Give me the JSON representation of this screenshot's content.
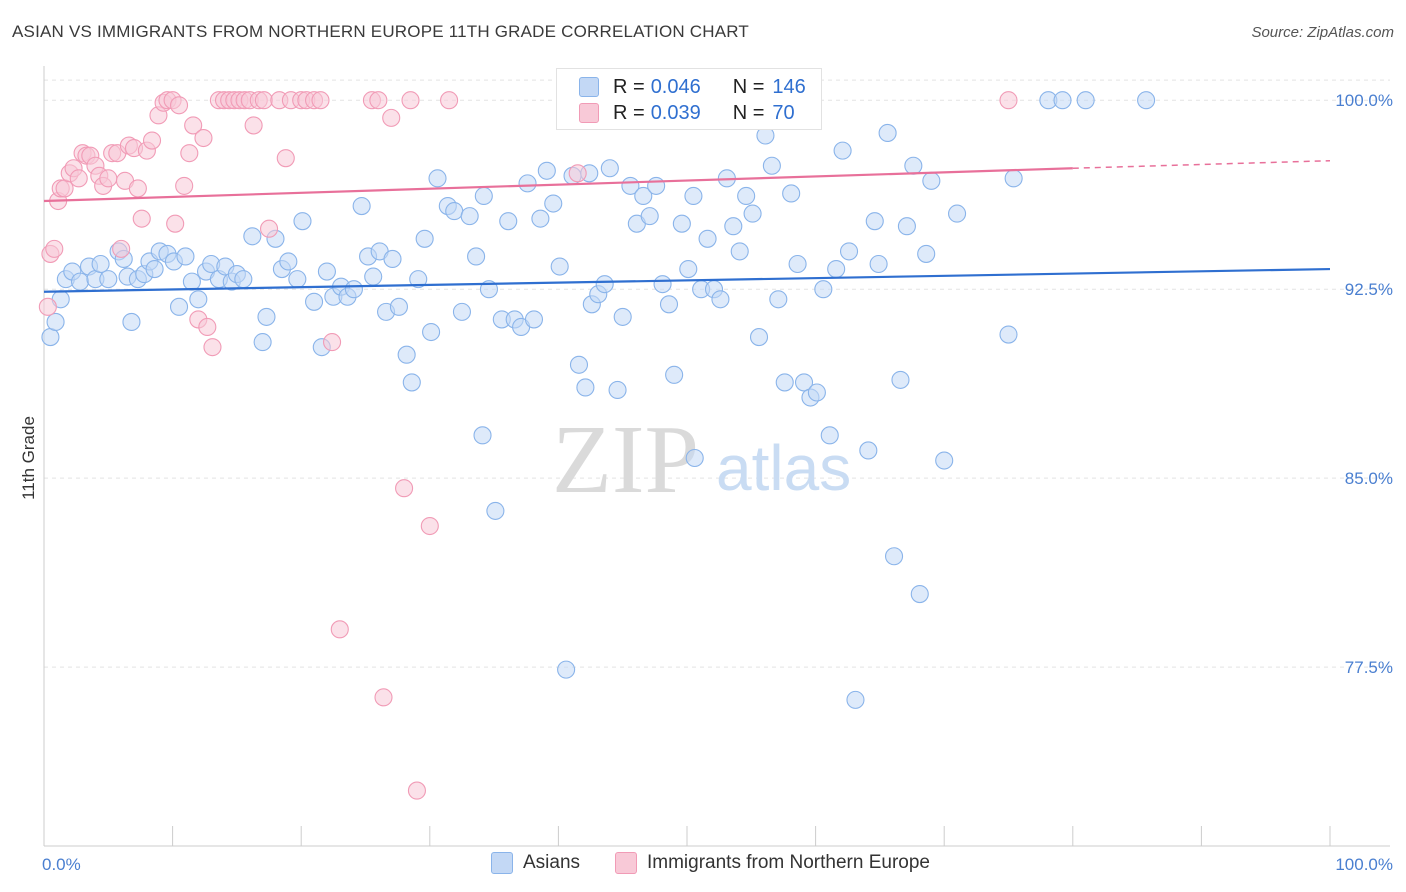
{
  "title": "ASIAN VS IMMIGRANTS FROM NORTHERN EUROPE 11TH GRADE CORRELATION CHART",
  "source": "Source: ZipAtlas.com",
  "watermark": {
    "zip": "ZIP",
    "atlas": "atlas"
  },
  "legend_top": {
    "rows": [
      {
        "r_label": "R =",
        "r_value": "0.046",
        "n_label": "N =",
        "n_value": "146",
        "color": "#8ab4ea",
        "fill": "#c3d8f5"
      },
      {
        "r_label": "R =",
        "r_value": "0.039",
        "n_label": "N =",
        "n_value": "70",
        "color": "#f19bb6",
        "fill": "#f8c9d7"
      }
    ]
  },
  "legend_bottom": [
    {
      "label": "Asians",
      "color": "#8ab4ea",
      "fill": "#c3d8f5"
    },
    {
      "label": "Immigrants from Northern Europe",
      "color": "#f19bb6",
      "fill": "#f8c9d7"
    }
  ],
  "chart_data": {
    "type": "scatter",
    "title": "ASIAN VS IMMIGRANTS FROM NORTHERN EUROPE 11TH GRADE CORRELATION CHART",
    "xlabel": "",
    "ylabel": "11th Grade",
    "xlim": [
      0,
      100
    ],
    "ylim": [
      70.4,
      101.2
    ],
    "x_tick_labels": [
      {
        "value": 0,
        "label": "0.0%"
      },
      {
        "value": 100,
        "label": "100.0%"
      }
    ],
    "y_tick_labels": [
      {
        "value": 100,
        "label": "100.0%"
      },
      {
        "value": 92.5,
        "label": "92.5%"
      },
      {
        "value": 85,
        "label": "85.0%"
      },
      {
        "value": 77.5,
        "label": "77.5%"
      }
    ],
    "grid": true,
    "series": [
      {
        "name": "Asians",
        "color": "#8ab4ea",
        "line_color": "#2f6fd0",
        "trend": {
          "x0": 0,
          "y0": 92.4,
          "x1": 100,
          "y1": 93.3
        },
        "points": [
          [
            0.5,
            90.6
          ],
          [
            0.9,
            91.2
          ],
          [
            1.3,
            92.1
          ],
          [
            1.7,
            92.9
          ],
          [
            2.2,
            93.2
          ],
          [
            2.8,
            92.8
          ],
          [
            3.5,
            93.4
          ],
          [
            4.0,
            92.9
          ],
          [
            4.4,
            93.5
          ],
          [
            5.0,
            92.9
          ],
          [
            5.8,
            94.0
          ],
          [
            6.2,
            93.7
          ],
          [
            6.5,
            93.0
          ],
          [
            6.8,
            91.2
          ],
          [
            7.3,
            92.9
          ],
          [
            7.8,
            93.1
          ],
          [
            8.2,
            93.6
          ],
          [
            8.6,
            93.3
          ],
          [
            9.0,
            94.0
          ],
          [
            9.6,
            93.9
          ],
          [
            10.1,
            93.6
          ],
          [
            10.5,
            91.8
          ],
          [
            11.0,
            93.8
          ],
          [
            11.5,
            92.8
          ],
          [
            12.0,
            92.1
          ],
          [
            12.6,
            93.2
          ],
          [
            13.0,
            93.5
          ],
          [
            13.6,
            92.9
          ],
          [
            14.1,
            93.4
          ],
          [
            14.6,
            92.8
          ],
          [
            15.0,
            93.1
          ],
          [
            15.5,
            92.9
          ],
          [
            16.2,
            94.6
          ],
          [
            17.0,
            90.4
          ],
          [
            17.3,
            91.4
          ],
          [
            18.0,
            94.5
          ],
          [
            18.5,
            93.3
          ],
          [
            19.0,
            93.6
          ],
          [
            19.7,
            92.9
          ],
          [
            20.1,
            95.2
          ],
          [
            21.0,
            92.0
          ],
          [
            21.6,
            90.2
          ],
          [
            22.0,
            93.2
          ],
          [
            22.5,
            92.2
          ],
          [
            23.1,
            92.6
          ],
          [
            23.6,
            92.2
          ],
          [
            24.1,
            92.5
          ],
          [
            24.7,
            95.8
          ],
          [
            25.2,
            93.8
          ],
          [
            25.6,
            93.0
          ],
          [
            26.1,
            94.0
          ],
          [
            26.6,
            91.6
          ],
          [
            27.1,
            93.7
          ],
          [
            27.6,
            91.8
          ],
          [
            28.2,
            89.9
          ],
          [
            28.6,
            88.8
          ],
          [
            29.1,
            92.9
          ],
          [
            29.6,
            94.5
          ],
          [
            30.1,
            90.8
          ],
          [
            30.6,
            96.9
          ],
          [
            31.4,
            95.8
          ],
          [
            31.9,
            95.6
          ],
          [
            32.5,
            91.6
          ],
          [
            33.1,
            95.4
          ],
          [
            33.6,
            93.8
          ],
          [
            34.1,
            86.7
          ],
          [
            34.6,
            92.5
          ],
          [
            35.1,
            83.7
          ],
          [
            35.6,
            91.3
          ],
          [
            36.1,
            95.2
          ],
          [
            36.6,
            91.3
          ],
          [
            37.1,
            91.0
          ],
          [
            37.6,
            96.7
          ],
          [
            38.1,
            91.3
          ],
          [
            38.6,
            95.3
          ],
          [
            39.1,
            97.2
          ],
          [
            39.6,
            95.9
          ],
          [
            40.1,
            93.4
          ],
          [
            40.6,
            77.4
          ],
          [
            41.1,
            97.0
          ],
          [
            41.6,
            89.5
          ],
          [
            42.1,
            88.6
          ],
          [
            42.6,
            91.9
          ],
          [
            43.1,
            92.3
          ],
          [
            43.6,
            92.7
          ],
          [
            44.0,
            97.3
          ],
          [
            44.6,
            88.5
          ],
          [
            45.0,
            91.4
          ],
          [
            45.6,
            96.6
          ],
          [
            46.1,
            95.1
          ],
          [
            46.6,
            96.2
          ],
          [
            47.1,
            95.4
          ],
          [
            47.6,
            96.6
          ],
          [
            48.1,
            92.7
          ],
          [
            48.6,
            91.9
          ],
          [
            49.0,
            89.1
          ],
          [
            49.6,
            95.1
          ],
          [
            50.1,
            93.3
          ],
          [
            50.6,
            85.8
          ],
          [
            51.1,
            92.5
          ],
          [
            51.6,
            94.5
          ],
          [
            52.1,
            92.5
          ],
          [
            52.6,
            92.1
          ],
          [
            53.1,
            96.9
          ],
          [
            53.6,
            95.0
          ],
          [
            54.1,
            94.0
          ],
          [
            54.6,
            96.2
          ],
          [
            55.1,
            95.5
          ],
          [
            55.6,
            90.6
          ],
          [
            56.1,
            98.6
          ],
          [
            56.6,
            97.4
          ],
          [
            57.1,
            92.1
          ],
          [
            57.6,
            88.8
          ],
          [
            58.1,
            96.3
          ],
          [
            58.6,
            93.5
          ],
          [
            59.1,
            88.8
          ],
          [
            59.6,
            88.2
          ],
          [
            60.1,
            88.4
          ],
          [
            60.6,
            92.5
          ],
          [
            61.1,
            86.7
          ],
          [
            61.6,
            93.3
          ],
          [
            62.1,
            98.0
          ],
          [
            62.6,
            94.0
          ],
          [
            63.1,
            76.2
          ],
          [
            64.1,
            86.1
          ],
          [
            64.6,
            95.2
          ],
          [
            64.9,
            93.5
          ],
          [
            65.6,
            98.7
          ],
          [
            66.1,
            81.9
          ],
          [
            66.6,
            88.9
          ],
          [
            67.1,
            95.0
          ],
          [
            67.6,
            97.4
          ],
          [
            68.1,
            80.4
          ],
          [
            68.6,
            93.9
          ],
          [
            69.0,
            96.8
          ],
          [
            70.0,
            85.7
          ],
          [
            71.0,
            95.5
          ],
          [
            75.0,
            90.7
          ],
          [
            75.4,
            96.9
          ],
          [
            78.1,
            100.0
          ],
          [
            79.2,
            100.0
          ],
          [
            81.0,
            100.0
          ],
          [
            85.7,
            100.0
          ],
          [
            50.5,
            96.2
          ],
          [
            34.2,
            96.2
          ],
          [
            42.4,
            97.1
          ]
        ]
      },
      {
        "name": "Immigrants from Northern Europe",
        "color": "#f19bb6",
        "line_color": "#e8709a",
        "trend": {
          "x0": 0,
          "y0": 96.0,
          "x1": 80,
          "y1": 97.3
        },
        "trend_dashed": {
          "x0": 80,
          "y0": 97.3,
          "x1": 100,
          "y1": 97.6
        },
        "points": [
          [
            0.3,
            91.8
          ],
          [
            0.5,
            93.9
          ],
          [
            0.8,
            94.1
          ],
          [
            1.1,
            96.0
          ],
          [
            1.3,
            96.5
          ],
          [
            1.6,
            96.5
          ],
          [
            2.0,
            97.1
          ],
          [
            2.3,
            97.3
          ],
          [
            2.7,
            96.9
          ],
          [
            3.0,
            97.9
          ],
          [
            3.3,
            97.8
          ],
          [
            3.6,
            97.8
          ],
          [
            4.0,
            97.4
          ],
          [
            4.3,
            97.0
          ],
          [
            4.6,
            96.6
          ],
          [
            5.0,
            96.9
          ],
          [
            5.3,
            97.9
          ],
          [
            5.7,
            97.9
          ],
          [
            6.0,
            94.1
          ],
          [
            6.3,
            96.8
          ],
          [
            6.6,
            98.2
          ],
          [
            7.0,
            98.1
          ],
          [
            7.3,
            96.5
          ],
          [
            7.6,
            95.3
          ],
          [
            8.0,
            98.0
          ],
          [
            8.4,
            98.4
          ],
          [
            8.9,
            99.4
          ],
          [
            9.3,
            99.9
          ],
          [
            9.6,
            100.0
          ],
          [
            10.0,
            100.0
          ],
          [
            10.2,
            95.1
          ],
          [
            10.5,
            99.8
          ],
          [
            10.9,
            96.6
          ],
          [
            11.3,
            97.9
          ],
          [
            11.6,
            99.0
          ],
          [
            12.0,
            91.3
          ],
          [
            12.4,
            98.5
          ],
          [
            12.7,
            91.0
          ],
          [
            13.1,
            90.2
          ],
          [
            13.6,
            100.0
          ],
          [
            14.0,
            100.0
          ],
          [
            14.4,
            100.0
          ],
          [
            14.8,
            100.0
          ],
          [
            15.2,
            100.0
          ],
          [
            15.6,
            100.0
          ],
          [
            16.0,
            100.0
          ],
          [
            16.3,
            99.0
          ],
          [
            16.7,
            100.0
          ],
          [
            17.1,
            100.0
          ],
          [
            17.5,
            94.9
          ],
          [
            18.3,
            100.0
          ],
          [
            18.8,
            97.7
          ],
          [
            19.2,
            100.0
          ],
          [
            20.0,
            100.0
          ],
          [
            20.4,
            100.0
          ],
          [
            21.0,
            100.0
          ],
          [
            21.5,
            100.0
          ],
          [
            22.4,
            90.4
          ],
          [
            23.0,
            79.0
          ],
          [
            25.5,
            100.0
          ],
          [
            26.0,
            100.0
          ],
          [
            26.4,
            76.3
          ],
          [
            27.0,
            99.3
          ],
          [
            28.0,
            84.6
          ],
          [
            28.5,
            100.0
          ],
          [
            29.0,
            72.6
          ],
          [
            30.0,
            83.1
          ],
          [
            31.5,
            100.0
          ],
          [
            41.5,
            97.1
          ],
          [
            75.0,
            100.0
          ]
        ]
      }
    ]
  }
}
